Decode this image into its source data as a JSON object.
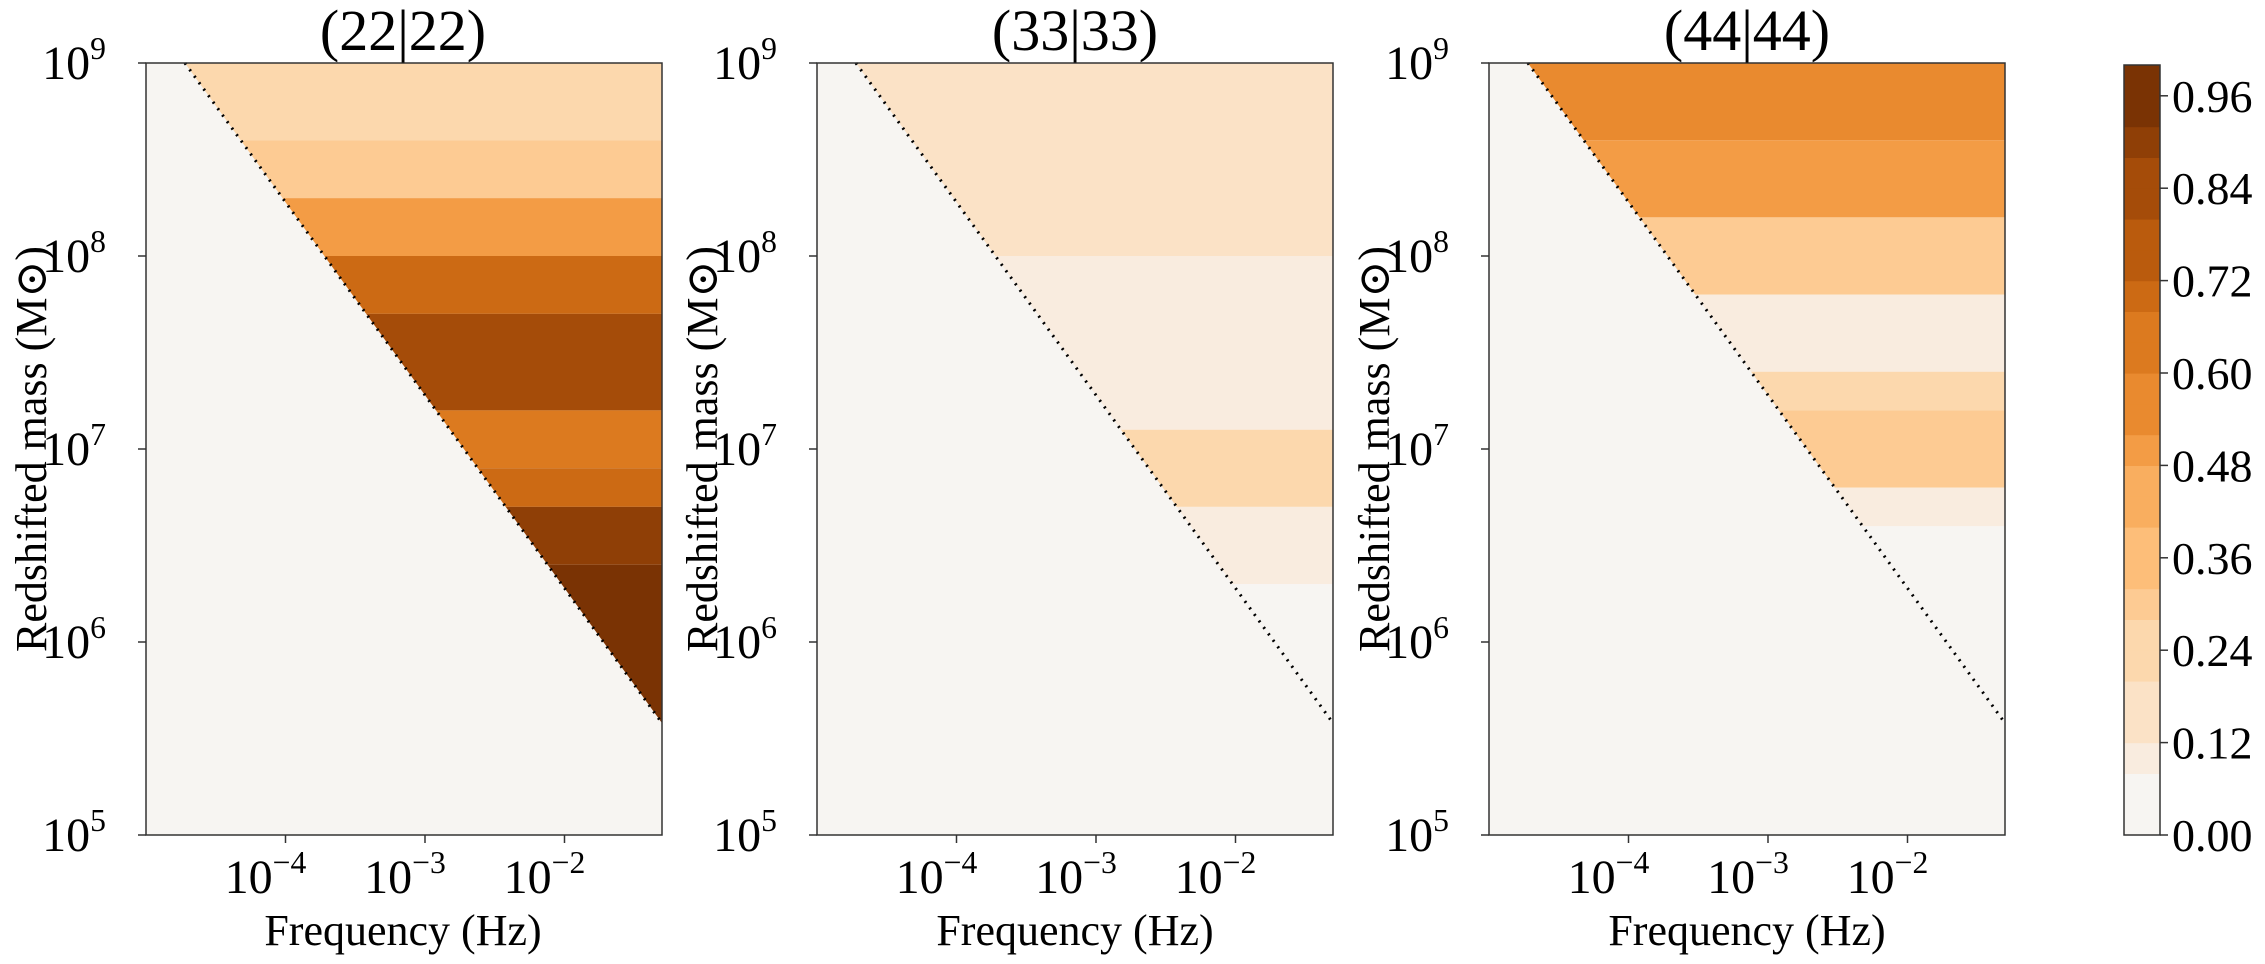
{
  "figure": {
    "panels": [
      {
        "title": "(22|22)",
        "xlabel": "Frequency (Hz)",
        "ylabel": "Redshifted mass (M⊙)"
      },
      {
        "title": "(33|33)",
        "xlabel": "Frequency (Hz)",
        "ylabel": "Redshifted mass (M⊙)"
      },
      {
        "title": "(44|44)",
        "xlabel": "Frequency (Hz)",
        "ylabel": "Redshifted mass (M⊙)"
      }
    ],
    "colorbar_ticks": [
      "0.00",
      "0.12",
      "0.24",
      "0.36",
      "0.48",
      "0.60",
      "0.72",
      "0.84",
      "0.96"
    ]
  },
  "chart_data": {
    "type": "heatmap",
    "x_scale": "log",
    "y_scale": "log",
    "xlim": [
      1e-05,
      0.05
    ],
    "ylim": [
      100000.0,
      1000000000.0
    ],
    "x_ticks": [
      "10^-4",
      "10^-3",
      "10^-2"
    ],
    "y_ticks": [
      "10^5",
      "10^6",
      "10^7",
      "10^8",
      "10^9"
    ],
    "colorbar": {
      "range": [
        0,
        1
      ],
      "levels": [
        0.0,
        0.04,
        0.08,
        0.12,
        0.16,
        0.2,
        0.24,
        0.28,
        0.32,
        0.36,
        0.4,
        0.44,
        0.48,
        0.52,
        0.56,
        0.6,
        0.64,
        0.68,
        0.72,
        0.76,
        0.8,
        0.84,
        0.88,
        0.92,
        0.96,
        1.0
      ],
      "colors": [
        "#f7f5f2",
        "#f9ecdf",
        "#fbe2c6",
        "#fcd8ad",
        "#fdcb93",
        "#fdbe79",
        "#f9ae5f",
        "#f39c45",
        "#e98a2f",
        "#dc7a1f",
        "#cc6a14",
        "#ba5b0d",
        "#a54c09",
        "#8f3f06",
        "#7a3304"
      ]
    },
    "series": [
      {
        "name": "(22|22)",
        "threshold_line": {
          "at_1e9": 1.9e-05,
          "at_0.05": 380000.0
        },
        "mass_bands": [
          {
            "log_mass": [
              8.6,
              9.0
            ],
            "value": 0.24
          },
          {
            "log_mass": [
              8.3,
              8.6
            ],
            "value": 0.28
          },
          {
            "log_mass": [
              8.0,
              8.3
            ],
            "value": 0.48
          },
          {
            "log_mass": [
              7.7,
              8.0
            ],
            "value": 0.72
          },
          {
            "log_mass": [
              7.2,
              7.7
            ],
            "value": 0.8
          },
          {
            "log_mass": [
              6.9,
              7.2
            ],
            "value": 0.6
          },
          {
            "log_mass": [
              6.7,
              6.9
            ],
            "value": 0.72
          },
          {
            "log_mass": [
              6.4,
              6.7
            ],
            "value": 0.92
          },
          {
            "log_mass": [
              5.0,
              6.4
            ],
            "value": 0.96
          }
        ]
      },
      {
        "name": "(33|33)",
        "threshold_line": {
          "at_1e9": 1.9e-05,
          "at_0.05": 380000.0
        },
        "mass_bands": [
          {
            "log_mass": [
              8.0,
              9.0
            ],
            "value": 0.16
          },
          {
            "log_mass": [
              7.1,
              8.0
            ],
            "value": 0.12
          },
          {
            "log_mass": [
              6.7,
              7.1
            ],
            "value": 0.24
          },
          {
            "log_mass": [
              6.3,
              6.7
            ],
            "value": 0.08
          },
          {
            "log_mass": [
              5.0,
              6.3
            ],
            "value": 0.04
          }
        ]
      },
      {
        "name": "(44|44)",
        "threshold_line": {
          "at_1e9": 1.9e-05,
          "at_0.05": 380000.0
        },
        "mass_bands": [
          {
            "log_mass": [
              8.6,
              9.0
            ],
            "value": 0.56
          },
          {
            "log_mass": [
              8.2,
              8.6
            ],
            "value": 0.48
          },
          {
            "log_mass": [
              7.8,
              8.2
            ],
            "value": 0.28
          },
          {
            "log_mass": [
              7.4,
              7.8
            ],
            "value": 0.12
          },
          {
            "log_mass": [
              7.2,
              7.4
            ],
            "value": 0.2
          },
          {
            "log_mass": [
              6.8,
              7.2
            ],
            "value": 0.28
          },
          {
            "log_mass": [
              6.6,
              6.8
            ],
            "value": 0.08
          },
          {
            "log_mass": [
              5.0,
              6.6
            ],
            "value": 0.0
          }
        ]
      }
    ]
  }
}
